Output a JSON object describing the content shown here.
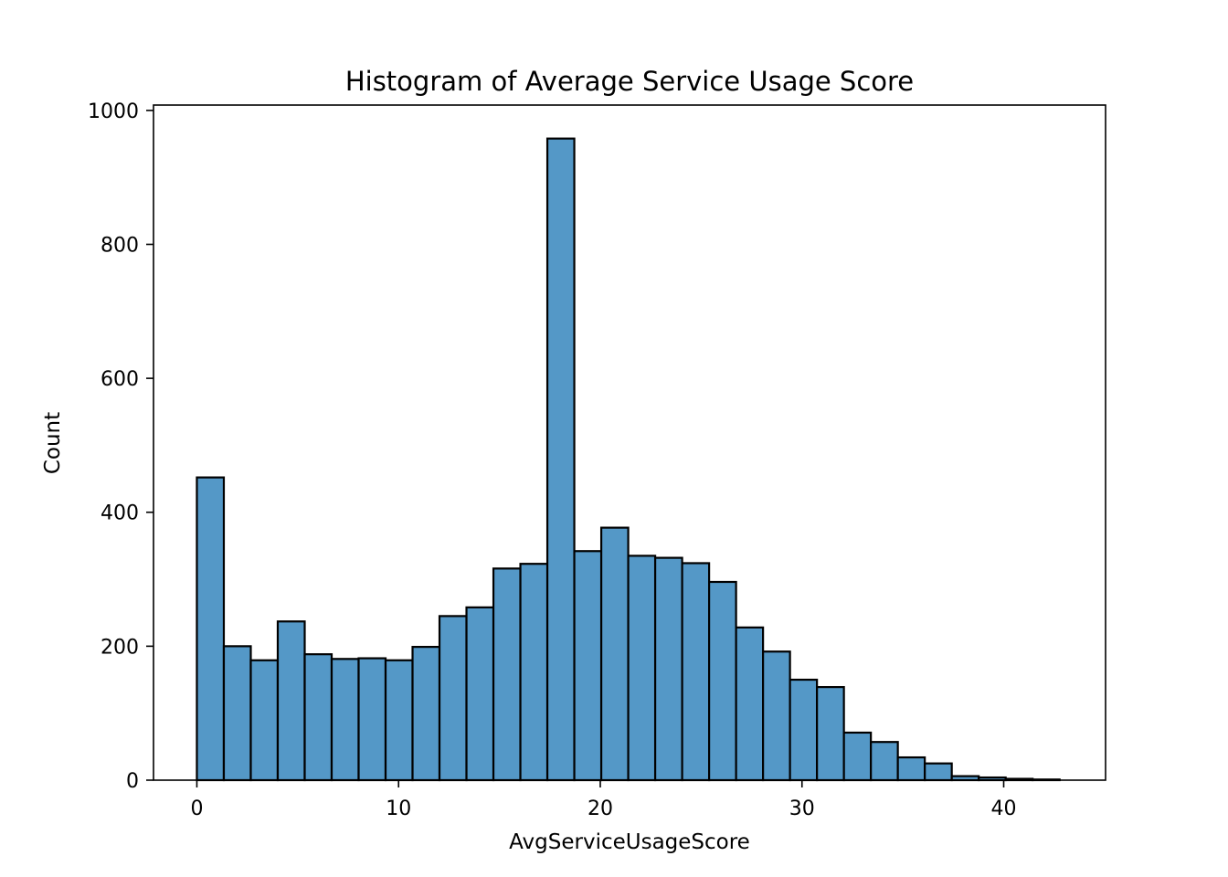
{
  "chart_data": {
    "type": "bar",
    "title": "Histogram of Average Service Usage Score",
    "xlabel": "AvgServiceUsageScore",
    "ylabel": "Count",
    "bar_color": "#5498C7",
    "edge_color": "#000000",
    "xlim": [
      -2.15,
      45.05
    ],
    "ylim": [
      0,
      1008
    ],
    "bin_start": 0,
    "bin_width": 1.3366,
    "counts": [
      452,
      200,
      179,
      237,
      188,
      181,
      182,
      179,
      199,
      245,
      258,
      316,
      323,
      958,
      342,
      377,
      335,
      332,
      324,
      296,
      228,
      192,
      150,
      139,
      71,
      57,
      34,
      25,
      6,
      4,
      2,
      1
    ],
    "xticks": [
      {
        "value": 0,
        "label": "0"
      },
      {
        "value": 10,
        "label": "10"
      },
      {
        "value": 20,
        "label": "20"
      },
      {
        "value": 30,
        "label": "30"
      },
      {
        "value": 40,
        "label": "40"
      }
    ],
    "yticks": [
      {
        "value": 0,
        "label": "0"
      },
      {
        "value": 200,
        "label": "200"
      },
      {
        "value": 400,
        "label": "400"
      },
      {
        "value": 600,
        "label": "600"
      },
      {
        "value": 800,
        "label": "800"
      },
      {
        "value": 1000,
        "label": "1000"
      }
    ],
    "grid": false,
    "legend": "none"
  }
}
